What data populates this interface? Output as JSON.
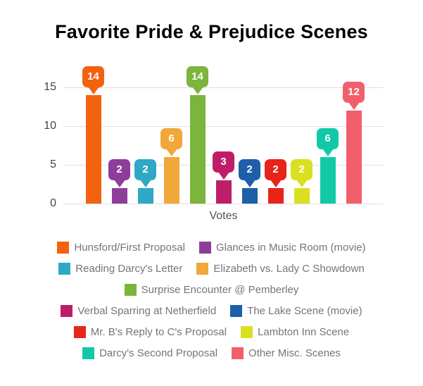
{
  "title": "Favorite Pride & Prejudice Scenes",
  "chart_data": {
    "type": "bar",
    "title": "Favorite Pride & Prejudice Scenes",
    "xlabel": "Votes",
    "ylabel": "",
    "ylim": [
      0,
      15
    ],
    "yticks": [
      0,
      5,
      10,
      15
    ],
    "grid": true,
    "legend_position": "bottom",
    "categories": [
      "Hunsford/First Proposal",
      "Glances in Music Room (movie)",
      "Reading Darcy's Letter",
      "Elizabeth vs. Lady C Showdown",
      "Surprise Encounter @ Pemberley",
      "Verbal Sparring at Netherfield",
      "The Lake Scene (movie)",
      "Mr. B's Reply to C's Proposal",
      "Lambton Inn Scene",
      "Darcy's Second Proposal",
      "Other Misc. Scenes"
    ],
    "values": [
      14,
      2,
      2,
      6,
      14,
      3,
      2,
      2,
      2,
      6,
      12
    ],
    "colors": [
      "#F2620F",
      "#8E3D9B",
      "#2FA8C7",
      "#F2A73B",
      "#7BB53B",
      "#BE1E68",
      "#1D5FA9",
      "#E8231A",
      "#D9E021",
      "#12C9A7",
      "#F25F6C"
    ],
    "label_text_color": "#ffffff",
    "gridline_color": "#e0e0e0",
    "legend_rows": [
      [
        0,
        1
      ],
      [
        2,
        3
      ],
      [
        4
      ],
      [
        5,
        6
      ],
      [
        7,
        8
      ],
      [
        9,
        10
      ]
    ]
  }
}
